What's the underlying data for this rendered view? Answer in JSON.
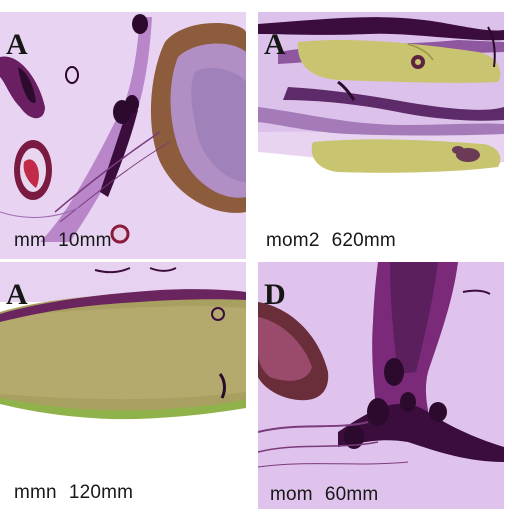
{
  "panels": [
    {
      "id": "top-left",
      "letter": "A",
      "scale": [
        "mm",
        "10mm"
      ]
    },
    {
      "id": "top-right",
      "letter": "A",
      "scale": [
        "mom2",
        "620mm"
      ]
    },
    {
      "id": "bottom-left",
      "letter": "A",
      "scale": [
        "mmn",
        "120mm"
      ]
    },
    {
      "id": "bottom-right",
      "letter": "D",
      "scale": [
        "mom",
        "60mm"
      ]
    }
  ],
  "colors": {
    "tissue_lilac": "#d9b7e6",
    "tissue_deep_purple": "#7a2a79",
    "nuclei_dark": "#3b0d3d",
    "yellow_tissue": "#c9c46f",
    "brown_tissue": "#8a5a3a",
    "olive_green": "#9aa44a",
    "background": "#ffffff"
  }
}
